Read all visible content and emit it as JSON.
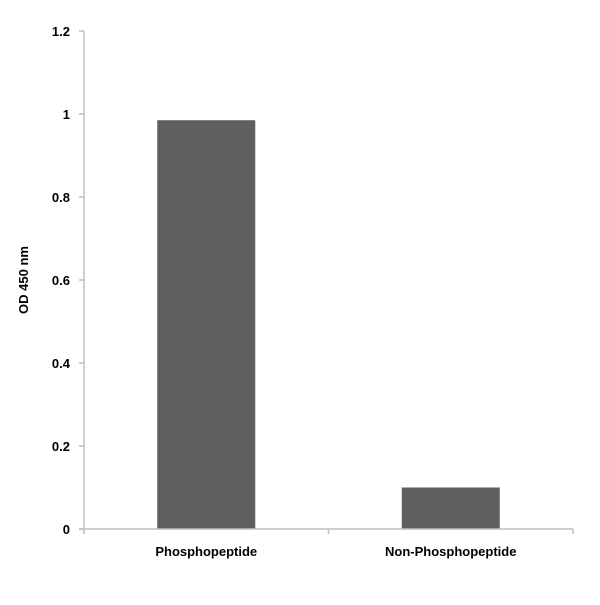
{
  "chart_data": {
    "type": "bar",
    "title": "",
    "xlabel": "",
    "ylabel": "OD 450 nm",
    "categories": [
      "Phosphopeptide",
      "Non-Phosphopeptide"
    ],
    "values": [
      0.985,
      0.1
    ],
    "ylim": [
      0,
      1.2
    ],
    "yticks": [
      0,
      0.2,
      0.4,
      0.6,
      0.8,
      1,
      1.2
    ],
    "ytick_labels": [
      "0",
      "0.2",
      "0.4",
      "0.6",
      "0.8",
      "1",
      "1.2"
    ],
    "grid": false,
    "legend": "none",
    "bar_color": "#5f5f5f",
    "axis_color": "#bfbfbf"
  }
}
